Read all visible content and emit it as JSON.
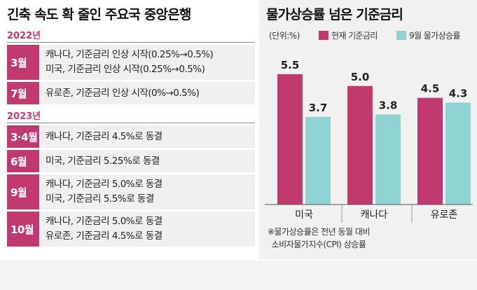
{
  "left": {
    "title": "긴축 속도 확 줄인 주요국 중앙은행",
    "groups": [
      {
        "year": "2022년",
        "rows": [
          {
            "month": "3월",
            "lines": [
              "캐나다, 기준금리 인상 시작(0.25%→0.5%)",
              "미국, 기준금리 인상 시작(0.25%→0.5%)"
            ]
          },
          {
            "month": "7월",
            "lines": [
              "유로존, 기준금리 인상 시작(0%→0.5%)"
            ]
          }
        ]
      },
      {
        "year": "2023년",
        "rows": [
          {
            "month": "3·4월",
            "lines": [
              "캐나다, 기준금리 4.5%로 동결"
            ]
          },
          {
            "month": "6월",
            "lines": [
              "미국, 기준금리 5.25%로 동결"
            ]
          },
          {
            "month": "9월",
            "lines": [
              "캐나다, 기준금리 5.0%로 동결",
              "미국, 기준금리 5.5%로 동결"
            ]
          },
          {
            "month": "10월",
            "lines": [
              "캐나다, 기준금리 5.0%로 동결",
              "유로존, 기준금리 4.5%로 동결"
            ]
          }
        ]
      }
    ]
  },
  "colors": {
    "accent": "#c03a6e",
    "teal": "#8fd3d3",
    "bar_base": "#c03a6e"
  },
  "chart_data": {
    "type": "bar",
    "title": "물가상승률 넘은 기준금리",
    "unit_label": "(단위:%)",
    "categories": [
      "미국",
      "캐나다",
      "유로존"
    ],
    "series": [
      {
        "name": "현재 기준금리",
        "values": [
          5.5,
          5.0,
          4.5
        ],
        "labels": [
          "5.5",
          "5.0",
          "4.5"
        ],
        "color": "#c03a6e"
      },
      {
        "name": "9월 물가상승률",
        "values": [
          3.7,
          3.8,
          4.3
        ],
        "labels": [
          "3.7",
          "3.8",
          "4.3"
        ],
        "color": "#8fd3d3"
      }
    ],
    "ylim": [
      0,
      6.5
    ],
    "note_lines": [
      "※물가상승률은 전년 동월 대비",
      "소비자물가지수(CPI) 상승률"
    ]
  }
}
